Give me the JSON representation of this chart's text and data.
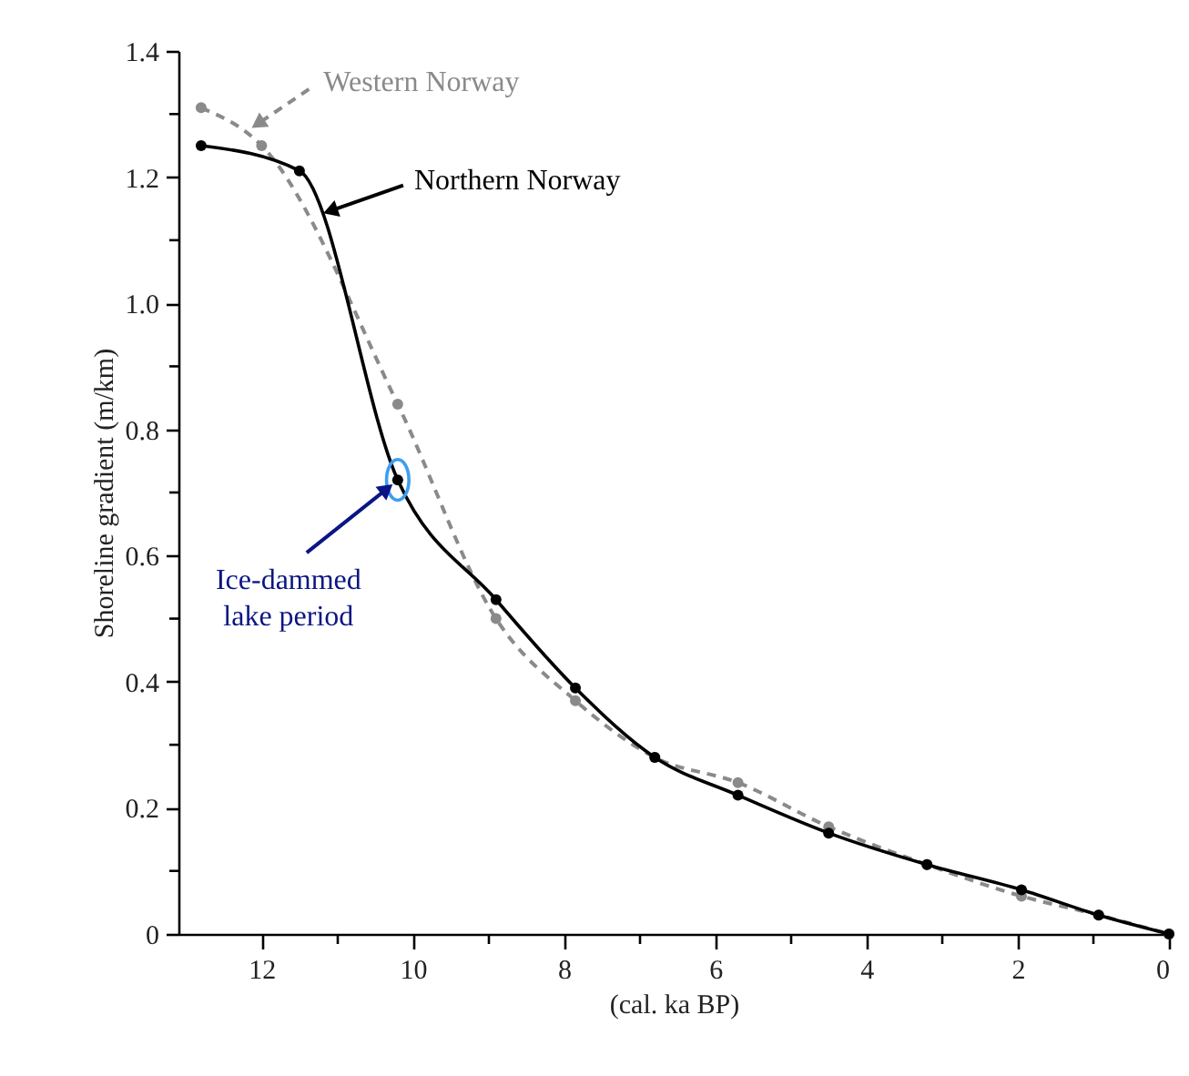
{
  "chart_data": {
    "type": "line",
    "xlabel": "(cal. ka BP)",
    "ylabel": "Shoreline gradient (m/km)",
    "xlim": [
      13.1,
      0
    ],
    "xticks": [
      12,
      {
        "value": 11,
        "label": null
      },
      10,
      {
        "value": 9,
        "label": null
      },
      8,
      {
        "value": 7,
        "label": null
      },
      6,
      {
        "value": 5,
        "label": null
      },
      4,
      {
        "value": 3,
        "label": null
      },
      2,
      {
        "value": 1,
        "label": null
      },
      0
    ],
    "ylim": [
      0,
      1.4
    ],
    "yticks": [
      0,
      {
        "value": 0.1,
        "label": null
      },
      0.2,
      {
        "value": 0.3,
        "label": null
      },
      0.4,
      {
        "value": 0.5,
        "label": null
      },
      0.6,
      {
        "value": 0.7,
        "label": null
      },
      0.8,
      {
        "value": 0.9,
        "label": null
      },
      {
        "value": 1,
        "label": "1.0"
      },
      {
        "value": 1.1,
        "label": null
      },
      1.2,
      {
        "value": 1.3,
        "label": null
      },
      1.4
    ],
    "grid": false,
    "marker": "circle",
    "series": [
      {
        "name": "Western Norway",
        "color": "#8a8a8a",
        "line_style": "dashed",
        "x": [
          12.8,
          12.0,
          10.2,
          8.9,
          7.85,
          6.8,
          5.7,
          4.5,
          3.2,
          1.95,
          0.93,
          0
        ],
        "values": [
          1.31,
          1.25,
          0.84,
          0.5,
          0.37,
          0.28,
          0.24,
          0.17,
          0.11,
          0.06,
          0.03,
          0
        ]
      },
      {
        "name": "Northern Norway",
        "color": "#000000",
        "line_style": "solid",
        "x": [
          12.8,
          11.5,
          10.2,
          8.9,
          7.85,
          6.8,
          5.7,
          4.5,
          3.2,
          1.95,
          0.93,
          0
        ],
        "values": [
          1.25,
          1.21,
          0.72,
          0.53,
          0.39,
          0.28,
          0.22,
          0.16,
          0.11,
          0.07,
          0.03,
          0
        ]
      }
    ],
    "annotations": [
      {
        "text": "Ice-dammed\nlake period",
        "x": 10.2,
        "y": 0.72
      }
    ]
  }
}
